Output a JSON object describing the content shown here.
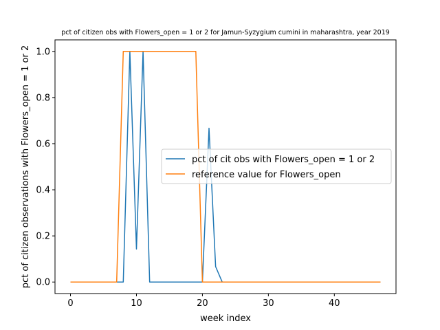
{
  "chart_data": {
    "type": "line",
    "title": "pct of citizen obs with Flowers_open = 1 or 2 for Jamun-Syzygium cumini in maharashtra, year 2019",
    "xlabel": "week index",
    "ylabel": "pct of citizen observations with Flowers_open = 1 or 2",
    "xlim": [
      -2.35,
      49.35
    ],
    "ylim": [
      -0.05,
      1.05
    ],
    "xticks": [
      0,
      10,
      20,
      30,
      40
    ],
    "yticks": [
      0.0,
      0.2,
      0.4,
      0.6,
      0.8,
      1.0
    ],
    "xtick_labels": [
      "0",
      "10",
      "20",
      "30",
      "40"
    ],
    "ytick_labels": [
      "0.0",
      "0.2",
      "0.4",
      "0.6",
      "0.8",
      "1.0"
    ],
    "grid": false,
    "legend_position": "center-right",
    "series": [
      {
        "name": "pct of cit obs with Flowers_open = 1 or 2",
        "color": "#1f77b4",
        "x": [
          0,
          1,
          2,
          3,
          4,
          5,
          6,
          7,
          8,
          9,
          10,
          11,
          12,
          13,
          14,
          15,
          16,
          17,
          18,
          19,
          20,
          21,
          22,
          23,
          24,
          25,
          26,
          27,
          28,
          29,
          30,
          31,
          32,
          33,
          34,
          35,
          36,
          37,
          38,
          39,
          40,
          41,
          42,
          43,
          44,
          45,
          46,
          47
        ],
        "y": [
          0,
          0,
          0,
          0,
          0,
          0,
          0,
          0,
          0,
          1.0,
          0.143,
          1.0,
          0,
          0,
          0,
          0,
          0,
          0,
          0,
          0,
          0,
          0.667,
          0.067,
          0,
          0,
          0,
          0,
          0,
          0,
          0,
          0,
          0,
          0,
          0,
          0,
          0,
          0,
          0,
          0,
          0,
          0,
          0,
          0,
          0,
          0,
          0,
          0,
          0
        ]
      },
      {
        "name": "reference value for Flowers_open",
        "color": "#ff7f0e",
        "x": [
          0,
          1,
          2,
          3,
          4,
          5,
          6,
          7,
          8,
          9,
          10,
          11,
          12,
          13,
          14,
          15,
          16,
          17,
          18,
          19,
          20,
          21,
          22,
          23,
          24,
          25,
          26,
          27,
          28,
          29,
          30,
          31,
          32,
          33,
          34,
          35,
          36,
          37,
          38,
          39,
          40,
          41,
          42,
          43,
          44,
          45,
          46,
          47
        ],
        "y": [
          0,
          0,
          0,
          0,
          0,
          0,
          0,
          0,
          1,
          1,
          1,
          1,
          1,
          1,
          1,
          1,
          1,
          1,
          1,
          1,
          0,
          0,
          0,
          0,
          0,
          0,
          0,
          0,
          0,
          0,
          0,
          0,
          0,
          0,
          0,
          0,
          0,
          0,
          0,
          0,
          0,
          0,
          0,
          0,
          0,
          0,
          0,
          0
        ]
      }
    ]
  }
}
